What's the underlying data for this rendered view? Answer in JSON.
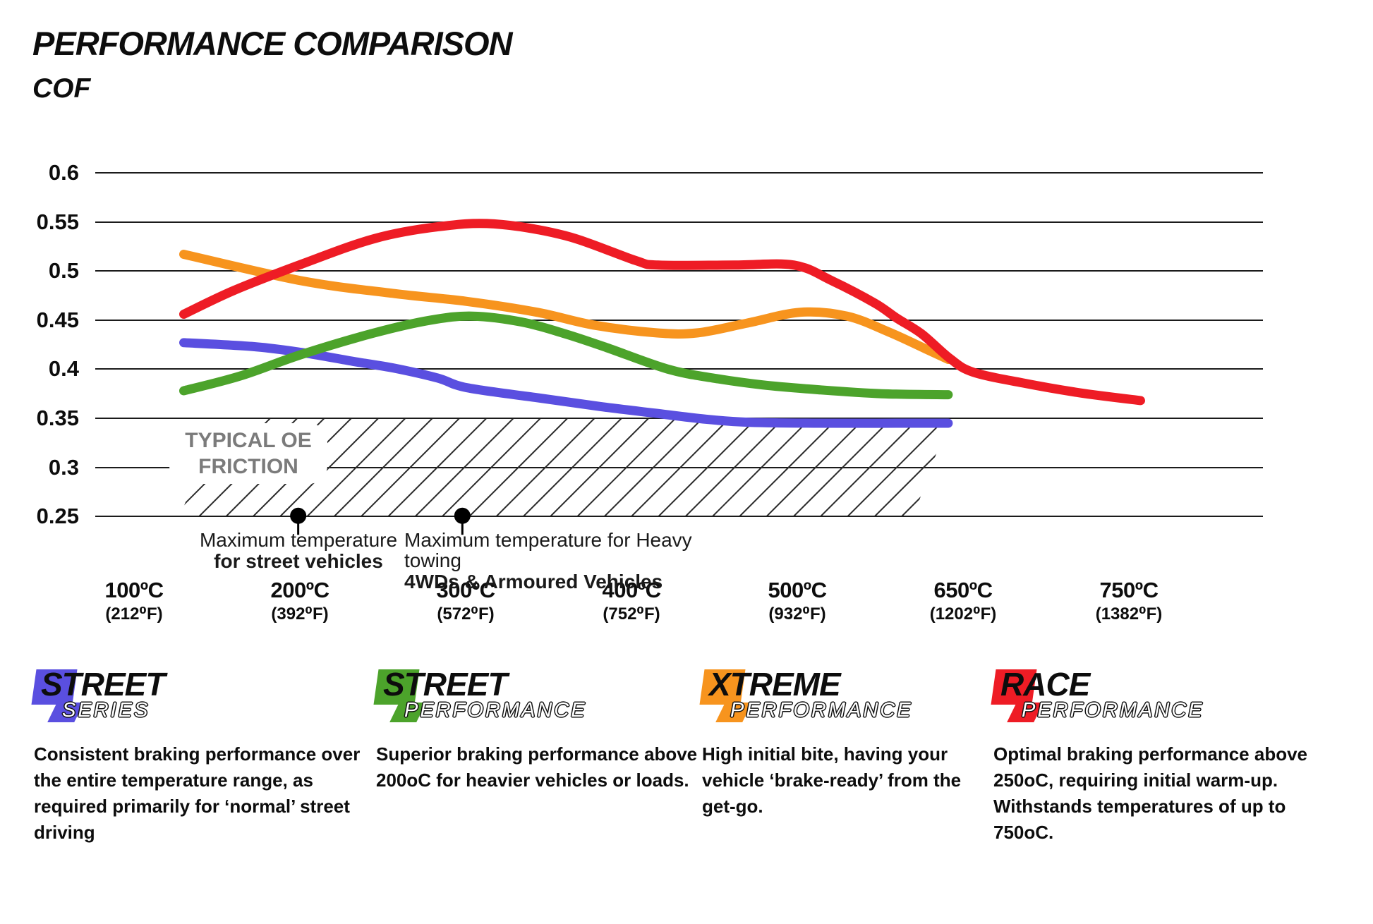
{
  "title": "PERFORMANCE COMPARISON",
  "y_axis_title": "COF",
  "axis": {
    "y_ticks": [
      {
        "label": "0.6",
        "value": 0.6
      },
      {
        "label": "0.55",
        "value": 0.55
      },
      {
        "label": "0.5",
        "value": 0.5
      },
      {
        "label": "0.45",
        "value": 0.45
      },
      {
        "label": "0.4",
        "value": 0.4
      },
      {
        "label": "0.35",
        "value": 0.35
      },
      {
        "label": "0.3",
        "value": 0.3
      },
      {
        "label": "0.25",
        "value": 0.25
      }
    ],
    "x_ticks": [
      {
        "label": "100ºC",
        "sublabel": "(212⁰F)"
      },
      {
        "label": "200ºC",
        "sublabel": "(392⁰F)"
      },
      {
        "label": "300ºC",
        "sublabel": "(572⁰F)"
      },
      {
        "label": "400ºC",
        "sublabel": "(752⁰F)"
      },
      {
        "label": "500ºC",
        "sublabel": "(932⁰F)"
      },
      {
        "label": "650ºC",
        "sublabel": "(1202⁰F)"
      },
      {
        "label": "750ºC",
        "sublabel": "(1382⁰F)"
      }
    ]
  },
  "oe_zone": {
    "line1": "TYPICAL OE",
    "line2": "FRICTION"
  },
  "annotations": [
    {
      "dot": {
        "u": 0.99,
        "v": 0.25
      },
      "line1": "Maximum temperature",
      "line2": "for street vehicles"
    },
    {
      "dot": {
        "u": 1.98,
        "v": 0.25
      },
      "line1": "Maximum temperature for Heavy towing",
      "line2": "4WDs & Armoured Vehicles"
    }
  ],
  "chart_data": {
    "type": "line",
    "title": "PERFORMANCE COMPARISON",
    "ylabel": "COF",
    "xlabel": "",
    "ylim": [
      0.25,
      0.6
    ],
    "grid": "horizontal",
    "x_categories": [
      "100ºC",
      "200ºC",
      "300ºC",
      "400ºC",
      "500ºC",
      "650ºC",
      "750ºC"
    ],
    "x_categories_f": [
      "(212⁰F)",
      "(392⁰F)",
      "(572⁰F)",
      "(752⁰F)",
      "(932⁰F)",
      "(1202⁰F)",
      "(1382⁰F)"
    ],
    "note_units": "points are [x in tick-index units where 0=100ºC .. 6=750ºC, COF value]",
    "series": [
      {
        "name": "Street Series",
        "color": "#5A4FE0",
        "points": [
          [
            0.3,
            0.427
          ],
          [
            0.72,
            0.423
          ],
          [
            1.01,
            0.417
          ],
          [
            1.32,
            0.408
          ],
          [
            1.57,
            0.401
          ],
          [
            1.83,
            0.391
          ],
          [
            2.01,
            0.381
          ],
          [
            2.43,
            0.371
          ],
          [
            2.81,
            0.362
          ],
          [
            3.15,
            0.355
          ],
          [
            3.45,
            0.349
          ],
          [
            3.7,
            0.346
          ],
          [
            4.1,
            0.345
          ],
          [
            4.91,
            0.345
          ]
        ]
      },
      {
        "name": "Street Performance",
        "color": "#4CA32B",
        "points": [
          [
            0.3,
            0.378
          ],
          [
            0.64,
            0.393
          ],
          [
            1.01,
            0.415
          ],
          [
            1.45,
            0.437
          ],
          [
            1.79,
            0.45
          ],
          [
            2.04,
            0.454
          ],
          [
            2.34,
            0.448
          ],
          [
            2.6,
            0.436
          ],
          [
            2.85,
            0.422
          ],
          [
            3.22,
            0.4
          ],
          [
            3.49,
            0.391
          ],
          [
            3.79,
            0.384
          ],
          [
            4.13,
            0.379
          ],
          [
            4.51,
            0.375
          ],
          [
            4.91,
            0.374
          ]
        ]
      },
      {
        "name": "Xtreme Performance",
        "color": "#F7941E",
        "points": [
          [
            0.3,
            0.517
          ],
          [
            1.01,
            0.49
          ],
          [
            1.57,
            0.477
          ],
          [
            2.01,
            0.469
          ],
          [
            2.43,
            0.458
          ],
          [
            2.77,
            0.445
          ],
          [
            3.15,
            0.437
          ],
          [
            3.4,
            0.437
          ],
          [
            3.7,
            0.447
          ],
          [
            4.02,
            0.458
          ],
          [
            4.3,
            0.454
          ],
          [
            4.55,
            0.438
          ],
          [
            4.77,
            0.421
          ],
          [
            4.91,
            0.41
          ]
        ]
      },
      {
        "name": "Race Performance",
        "color": "#EE1C25",
        "points": [
          [
            0.3,
            0.456
          ],
          [
            0.6,
            0.48
          ],
          [
            1.01,
            0.507
          ],
          [
            1.45,
            0.533
          ],
          [
            1.83,
            0.545
          ],
          [
            2.17,
            0.548
          ],
          [
            2.6,
            0.536
          ],
          [
            3.02,
            0.511
          ],
          [
            3.16,
            0.506
          ],
          [
            3.62,
            0.506
          ],
          [
            3.98,
            0.506
          ],
          [
            4.21,
            0.49
          ],
          [
            4.47,
            0.467
          ],
          [
            4.6,
            0.452
          ],
          [
            4.75,
            0.436
          ],
          [
            4.92,
            0.411
          ],
          [
            5.06,
            0.397
          ],
          [
            5.36,
            0.386
          ],
          [
            5.7,
            0.376
          ],
          [
            6.07,
            0.368
          ]
        ]
      }
    ]
  },
  "legend": {
    "items": [
      {
        "word1": "STREET",
        "word2": "SERIES",
        "color": "#5A4FE0",
        "description": "Consistent braking performance over the entire temperature range, as required primarily for ‘normal’ street driving"
      },
      {
        "word1": "STREET",
        "word2": "PERFORMANCE",
        "color": "#4CA32B",
        "description": "Superior braking performance above 200oC for heavier vehicles or loads."
      },
      {
        "word1": "XTREME",
        "word2": "PERFORMANCE",
        "color": "#F7941E",
        "description": "High initial bite, having your vehicle ‘brake-ready’ from the get-go."
      },
      {
        "word1": "RACE",
        "word2": "PERFORMANCE",
        "color": "#EE1C25",
        "description": "Optimal braking performance above 250oC, requiring initial warm-up. Withstands temperatures of up to 750oC."
      }
    ]
  }
}
